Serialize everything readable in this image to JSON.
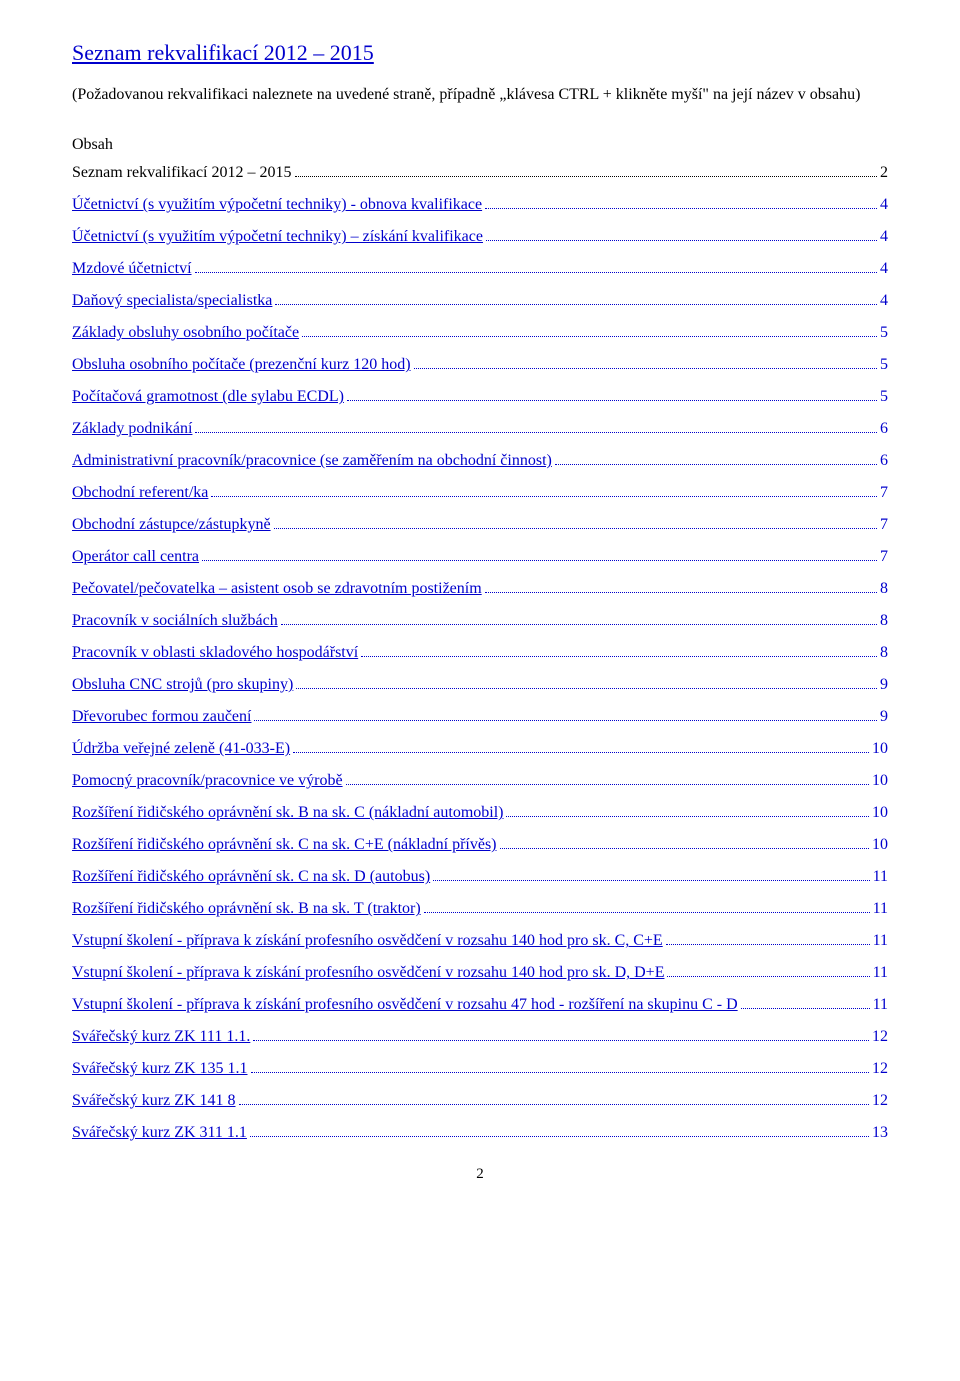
{
  "title": "Seznam rekvalifikací 2012 – 2015",
  "subtitle": "(Požadovanou rekvalifikaci naleznete na uvedené straně, případně „klávesa CTRL + klikněte myší\" na její název v obsahu)",
  "section_heading": "Obsah",
  "page_number": "2",
  "colors": {
    "link": "#0000cc",
    "text": "#000000",
    "background": "#ffffff"
  },
  "typography": {
    "font_family": "Times New Roman",
    "title_fontsize": 22,
    "body_fontsize": 16
  },
  "toc": [
    {
      "label": "Seznam rekvalifikací 2012 – 2015",
      "page": "2",
      "black": true
    },
    {
      "label": "Účetnictví (s využitím výpočetní techniky) - obnova kvalifikace",
      "page": "4"
    },
    {
      "label": "Účetnictví (s využitím výpočetní techniky) – získání kvalifikace",
      "page": "4"
    },
    {
      "label": "Mzdové účetnictví",
      "page": "4"
    },
    {
      "label": "Daňový specialista/specialistka",
      "page": "4"
    },
    {
      "label": "Základy obsluhy osobního počítače",
      "page": "5"
    },
    {
      "label": "Obsluha osobního počítače (prezenční kurz 120 hod)",
      "page": "5"
    },
    {
      "label": "Počítačová gramotnost (dle sylabu ECDL)",
      "page": "5"
    },
    {
      "label": "Základy podnikání",
      "page": "6"
    },
    {
      "label": "Administrativní pracovník/pracovnice (se zaměřením na obchodní činnost)",
      "page": "6"
    },
    {
      "label": "Obchodní referent/ka",
      "page": "7"
    },
    {
      "label": "Obchodní zástupce/zástupkyně",
      "page": "7"
    },
    {
      "label": "Operátor call centra",
      "page": "7"
    },
    {
      "label": "Pečovatel/pečovatelka – asistent osob se zdravotním postižením",
      "page": "8"
    },
    {
      "label": "Pracovník v sociálních službách",
      "page": "8"
    },
    {
      "label": "Pracovník v oblasti skladového hospodářství",
      "page": "8"
    },
    {
      "label": "Obsluha CNC strojů (pro skupiny)",
      "page": "9"
    },
    {
      "label": "Dřevorubec formou zaučení",
      "page": "9"
    },
    {
      "label": "Údržba veřejné zeleně (41-033-E)",
      "page": "10"
    },
    {
      "label": "Pomocný pracovník/pracovnice ve výrobě",
      "page": "10"
    },
    {
      "label": "Rozšíření řidičského oprávnění sk. B na sk. C (nákladní automobil)",
      "page": "10"
    },
    {
      "label": "Rozšíření řidičského oprávnění sk. C na sk. C+E (nákladní přívěs)",
      "page": "10"
    },
    {
      "label": "Rozšíření řidičského oprávnění sk. C na sk. D (autobus)",
      "page": "11"
    },
    {
      "label": "Rozšíření řidičského oprávnění sk. B na sk. T (traktor)",
      "page": "11"
    },
    {
      "label": "Vstupní školení - příprava k získání profesního osvědčení v rozsahu 140 hod pro sk. C, C+E",
      "page": "11"
    },
    {
      "label": "Vstupní školení - příprava k získání profesního osvědčení v rozsahu 140 hod pro sk. D, D+E",
      "page": "11"
    },
    {
      "label": "Vstupní školení - příprava k získání profesního osvědčení v rozsahu 47 hod - rozšíření na skupinu C - D",
      "page": "11"
    },
    {
      "label": "Svářečský kurz ZK 111 1.1.",
      "page": "12"
    },
    {
      "label": "Svářečský kurz ZK 135 1.1",
      "page": "12"
    },
    {
      "label": "Svářečský kurz ZK 141 8",
      "page": "12"
    },
    {
      "label": "Svářečský kurz ZK 311 1.1",
      "page": "13"
    }
  ]
}
